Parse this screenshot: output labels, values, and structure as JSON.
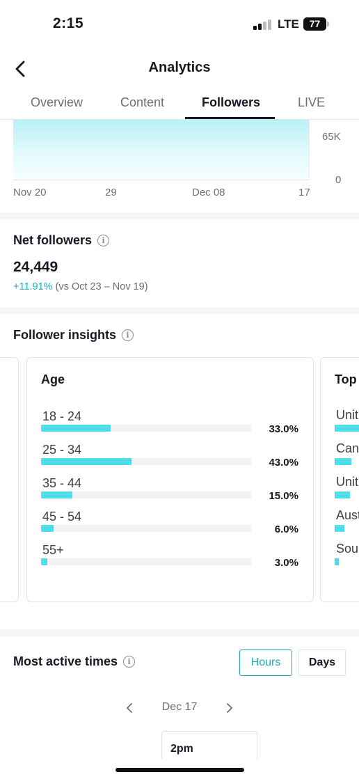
{
  "status_bar": {
    "time": "2:15",
    "network": "LTE",
    "battery": "77"
  },
  "header": {
    "title": "Analytics"
  },
  "tabs": [
    {
      "label": "Overview",
      "active": false
    },
    {
      "label": "Content",
      "active": false
    },
    {
      "label": "Followers",
      "active": true
    },
    {
      "label": "LIVE",
      "active": false
    }
  ],
  "chart": {
    "y_ticks": [
      "65K",
      "0"
    ],
    "x_ticks": [
      "Nov 20",
      "29",
      "Dec 08",
      "17"
    ],
    "fill_color": "#b8f2f6"
  },
  "net_followers": {
    "title": "Net followers",
    "value": "24,449",
    "change": "+11.91%",
    "comparison": " (vs Oct 23 – Nov 19)"
  },
  "follower_insights": {
    "title": "Follower insights",
    "age_card": {
      "title": "Age",
      "rows": [
        {
          "label": "18 - 24",
          "percent": "33.0%",
          "value": 33.0
        },
        {
          "label": "25 - 34",
          "percent": "43.0%",
          "value": 43.0
        },
        {
          "label": "35 - 44",
          "percent": "15.0%",
          "value": 15.0
        },
        {
          "label": "45 - 54",
          "percent": "6.0%",
          "value": 6.0
        },
        {
          "label": "55+",
          "percent": "3.0%",
          "value": 3.0
        }
      ]
    },
    "next_card": {
      "title": "Top",
      "rows": [
        "Unit",
        "Can",
        "Unit",
        "Aust",
        "Sou"
      ]
    }
  },
  "most_active_times": {
    "title": "Most active times",
    "hours_label": "Hours",
    "days_label": "Days",
    "date": "Dec 17",
    "time_label": "2pm"
  },
  "colors": {
    "accent": "#20a9bb",
    "bar": "#4fdde9"
  }
}
